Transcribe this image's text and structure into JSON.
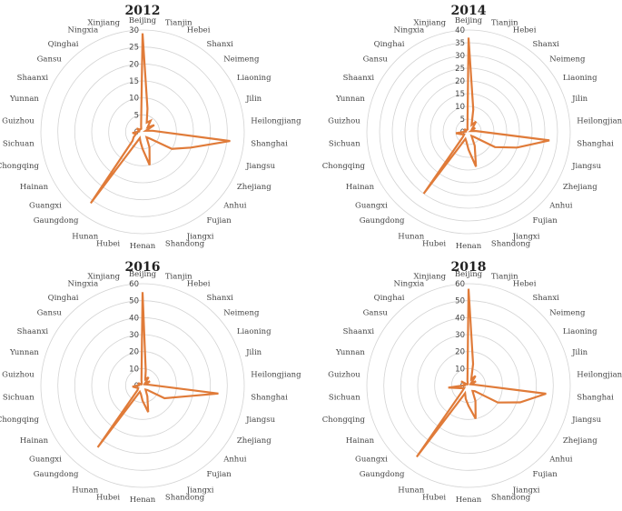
{
  "chart_data": [
    {
      "type": "radar",
      "title": "2012",
      "rmax": 30,
      "ticks": [
        0,
        5,
        10,
        15,
        20,
        25,
        30
      ],
      "grid": true,
      "categories": [
        "Beijing",
        "Tianjin",
        "Hebei",
        "Shanxi",
        "Neimeng",
        "Liaoning",
        "Jilin",
        "Heilongjiang",
        "Shanghai",
        "Jiangsu",
        "Zhejiang",
        "Anhui",
        "Fujian",
        "Jiangxi",
        "Shandong",
        "Henan",
        "Hubei",
        "Hunan",
        "Gaungdong",
        "Guangxi",
        "Hainan",
        "Chongqing",
        "Sichuan",
        "Guizhou",
        "Yunnan",
        "Shaanxi",
        "Gansu",
        "Qinghai",
        "Ningxia",
        "Xinjiang"
      ],
      "series": [
        {
          "values": [
            29,
            7,
            3,
            4,
            2,
            4,
            1,
            3,
            26,
            15,
            10,
            3,
            2,
            5,
            10,
            5,
            3,
            2,
            26,
            4,
            3,
            2,
            3,
            1,
            1,
            2,
            1,
            1,
            1,
            2
          ],
          "color": "#E07B39"
        }
      ]
    },
    {
      "type": "radar",
      "title": "2014",
      "rmax": 40,
      "ticks": [
        0,
        5,
        10,
        15,
        20,
        25,
        30,
        35,
        40
      ],
      "grid": true,
      "categories": [
        "Beijing",
        "Tianjin",
        "Hebei",
        "Shanxi",
        "Neimeng",
        "Liaoning",
        "Jilin",
        "Heilongjiang",
        "Shanghai",
        "Jiangsu",
        "Zhejiang",
        "Anhui",
        "Fujian",
        "Jiangxi",
        "Shandong",
        "Henan",
        "Hubei",
        "Hunan",
        "Gaungdong",
        "Guangxi",
        "Hainan",
        "Chongqing",
        "Sichuan",
        "Guizhou",
        "Yunnan",
        "Shaanxi",
        "Gansu",
        "Qinghai",
        "Ningxia",
        "Xinjiang"
      ],
      "series": [
        {
          "values": [
            37,
            9,
            3,
            5,
            2,
            3,
            1,
            3,
            32,
            20,
            12,
            3,
            2,
            6,
            14,
            7,
            4,
            3,
            30,
            3,
            2,
            3,
            5,
            1,
            1,
            2,
            1,
            1,
            1,
            2
          ],
          "color": "#E07B39"
        }
      ]
    },
    {
      "type": "radar",
      "title": "2016",
      "rmax": 60,
      "ticks": [
        0,
        10,
        20,
        30,
        40,
        50,
        60
      ],
      "grid": true,
      "categories": [
        "Beijing",
        "Tianjin",
        "Hebei",
        "Shanxi",
        "Neimeng",
        "Liaoning",
        "Jilin",
        "Heilongjiang",
        "Shanghai",
        "Jiangsu",
        "Zhejiang",
        "Anhui",
        "Fujian",
        "Jiangxi",
        "Shandong",
        "Henan",
        "Hubei",
        "Hunan",
        "Gaungdong",
        "Guangxi",
        "Hainan",
        "Chongqing",
        "Sichuan",
        "Guizhou",
        "Yunnan",
        "Shaanxi",
        "Gansu",
        "Qinghai",
        "Ningxia",
        "Xinjiang"
      ],
      "series": [
        {
          "values": [
            55,
            9,
            4,
            6,
            2,
            5,
            2,
            4,
            45,
            22,
            15,
            4,
            3,
            7,
            16,
            9,
            5,
            4,
            45,
            4,
            3,
            4,
            6,
            2,
            2,
            3,
            1,
            1,
            1,
            3
          ],
          "color": "#E07B39"
        }
      ]
    },
    {
      "type": "radar",
      "title": "2018",
      "rmax": 60,
      "ticks": [
        0,
        10,
        20,
        30,
        40,
        50,
        60
      ],
      "grid": true,
      "categories": [
        "Beijing",
        "Tianjin",
        "Hebei",
        "Shanxi",
        "Neimeng",
        "Liaoning",
        "Jilin",
        "Heilongjiang",
        "Shanghai",
        "Jiangsu",
        "Zhejiang",
        "Anhui",
        "Fujian",
        "Jiangxi",
        "Shandong",
        "Henan",
        "Hubei",
        "Hunan",
        "Gaungdong",
        "Guangxi",
        "Hainan",
        "Chongqing",
        "Sichuan",
        "Guizhou",
        "Yunnan",
        "Shaanxi",
        "Gansu",
        "Qinghai",
        "Ningxia",
        "Xinjiang"
      ],
      "series": [
        {
          "values": [
            57,
            13,
            4,
            7,
            2,
            5,
            2,
            4,
            46,
            32,
            20,
            5,
            4,
            10,
            20,
            12,
            8,
            5,
            52,
            5,
            3,
            5,
            12,
            2,
            2,
            5,
            1,
            1,
            1,
            3
          ],
          "color": "#E07B39"
        }
      ]
    }
  ]
}
